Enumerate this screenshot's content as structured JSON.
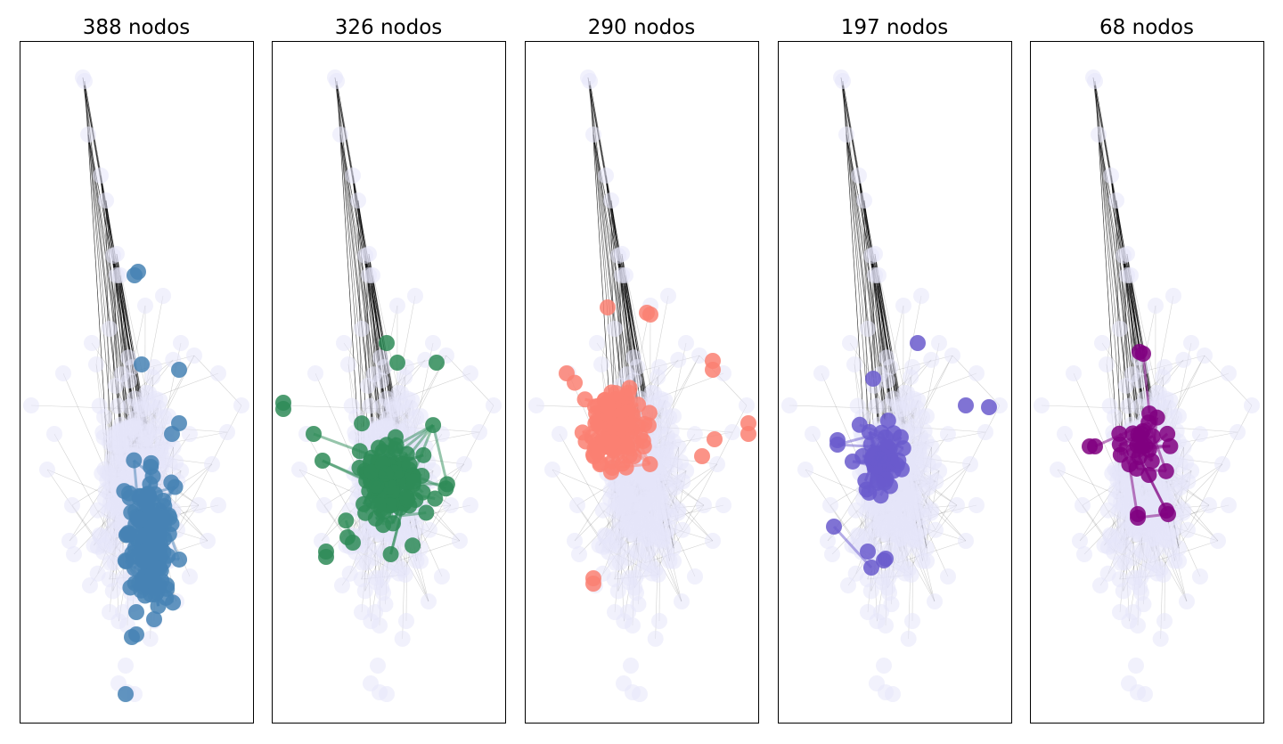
{
  "panels": [
    {
      "title": "388 nodos",
      "highlight_color": "#4682b4"
    },
    {
      "title": "326 nodos",
      "highlight_color": "#2e8b57"
    },
    {
      "title": "290 nodos",
      "highlight_color": "#fa8072"
    },
    {
      "title": "197 nodos",
      "highlight_color": "#6a5acd"
    },
    {
      "title": "68 nodos",
      "highlight_color": "#800080"
    }
  ],
  "base_node_color": "#e6e6fa",
  "edge_color": "#000000"
}
